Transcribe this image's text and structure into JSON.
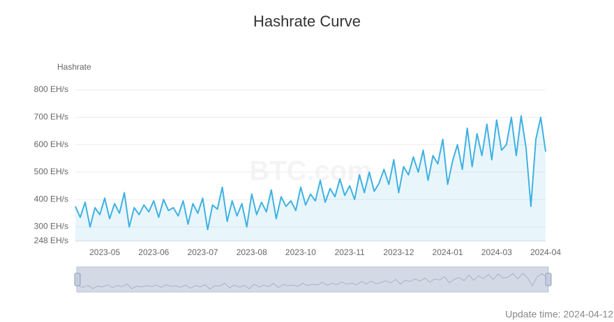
{
  "chart_data": {
    "type": "area",
    "title": "Hashrate Curve",
    "y_axis_label": "Hashrate",
    "watermark": "BTC.com",
    "footer": "Update time: 2024-04-12",
    "categories": [
      null,
      null,
      null,
      null,
      null,
      null,
      "2023-05",
      null,
      null,
      null,
      null,
      null,
      null,
      null,
      null,
      null,
      "2023-06",
      null,
      null,
      null,
      null,
      null,
      null,
      null,
      null,
      null,
      "2023-07",
      null,
      null,
      null,
      null,
      null,
      null,
      null,
      null,
      null,
      "2023-08",
      null,
      null,
      null,
      null,
      null,
      null,
      null,
      null,
      null,
      "2023-10",
      null,
      null,
      null,
      null,
      null,
      null,
      null,
      null,
      null,
      "2023-11",
      null,
      null,
      null,
      null,
      null,
      null,
      null,
      null,
      null,
      "2023-12",
      null,
      null,
      null,
      null,
      null,
      null,
      null,
      null,
      null,
      "2024-01",
      null,
      null,
      null,
      null,
      null,
      null,
      null,
      null,
      null,
      "2024-03",
      null,
      null,
      null,
      null,
      null,
      null,
      null,
      null,
      null,
      "2024-04"
    ],
    "series": [
      {
        "name": "Hashrate",
        "color": "#3fb1e3",
        "values": [
          375,
          335,
          390,
          300,
          370,
          345,
          405,
          330,
          385,
          350,
          425,
          300,
          370,
          345,
          380,
          355,
          395,
          335,
          400,
          360,
          370,
          340,
          395,
          310,
          385,
          350,
          405,
          290,
          380,
          365,
          445,
          320,
          395,
          340,
          385,
          300,
          420,
          345,
          390,
          355,
          435,
          330,
          410,
          375,
          395,
          360,
          445,
          380,
          420,
          395,
          470,
          390,
          440,
          410,
          475,
          415,
          450,
          400,
          490,
          425,
          500,
          430,
          460,
          510,
          455,
          545,
          425,
          520,
          490,
          555,
          500,
          580,
          470,
          560,
          530,
          620,
          455,
          540,
          600,
          510,
          660,
          520,
          640,
          560,
          675,
          545,
          690,
          580,
          600,
          700,
          560,
          705,
          590,
          375,
          620,
          700,
          575
        ]
      }
    ],
    "ylim": [
      248,
      800
    ],
    "yticks": [
      {
        "value": 248,
        "label": "248 EH/s"
      },
      {
        "value": 300,
        "label": "300 EH/s"
      },
      {
        "value": 400,
        "label": "400 EH/s"
      },
      {
        "value": 500,
        "label": "500 EH/s"
      },
      {
        "value": 600,
        "label": "600 EH/s"
      },
      {
        "value": 700,
        "label": "700 EH/s"
      },
      {
        "value": 800,
        "label": "800 EH/s"
      }
    ],
    "grid": true
  }
}
